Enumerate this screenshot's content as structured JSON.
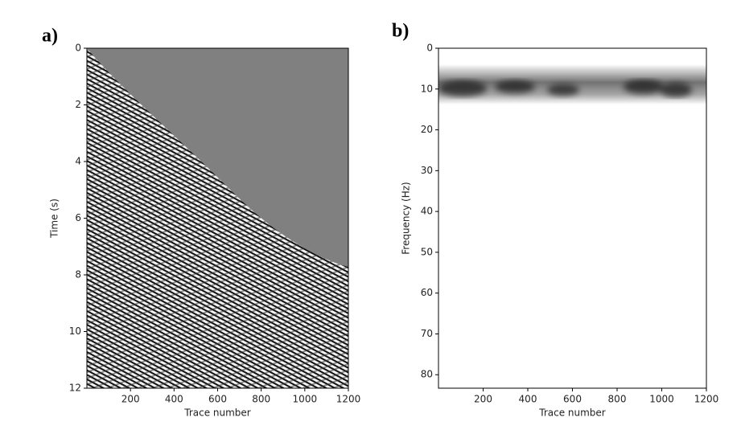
{
  "chart_data": [
    {
      "type": "image",
      "panel_label": "a)",
      "xlabel": "Trace number",
      "ylabel": "Time (s)",
      "xlim": [
        0,
        1200
      ],
      "xticks": [
        200,
        400,
        600,
        800,
        1000,
        1200
      ],
      "ylim": [
        0,
        12
      ],
      "yticks": [
        0,
        2,
        4,
        6,
        8,
        10,
        12
      ],
      "y_inverted": true
    },
    {
      "type": "image",
      "panel_label": "b)",
      "xlabel": "Trace number",
      "ylabel": "Frequency (Hz)",
      "xlim": [
        0,
        1200
      ],
      "xticks": [
        200,
        400,
        600,
        800,
        1000,
        1200
      ],
      "ylim": [
        0,
        83.3
      ],
      "yticks": [
        0,
        10,
        20,
        30,
        40,
        50,
        60,
        70,
        80
      ],
      "y_inverted": true
    }
  ]
}
